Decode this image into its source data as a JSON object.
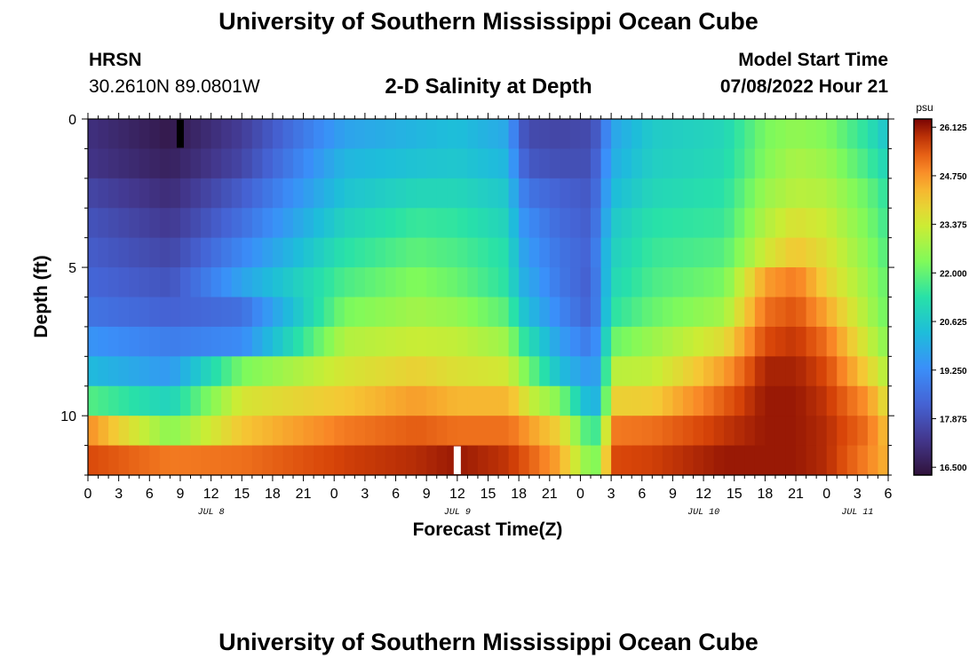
{
  "header": {
    "title_top": "University of Southern Mississippi Ocean Cube",
    "title_bottom": "University of Southern Mississippi Ocean Cube",
    "station": "HRSN",
    "coords": "30.2610N  89.0801W",
    "subtitle": "2-D Salinity at Depth",
    "start_label": "Model Start Time",
    "start_value": "07/08/2022 Hour 21"
  },
  "chart_data": {
    "type": "heatmap",
    "title": "2-D Salinity at Depth",
    "xlabel": "Forecast Time(Z)",
    "ylabel": "Depth (ft)",
    "x_ticks": [
      "0",
      "3",
      "6",
      "9",
      "12",
      "15",
      "18",
      "21",
      "0",
      "3",
      "6",
      "9",
      "12",
      "15",
      "18",
      "21",
      "0",
      "3",
      "6",
      "9",
      "12",
      "15",
      "18",
      "21",
      "0",
      "3",
      "6"
    ],
    "day_labels": [
      {
        "label": "JUL 8",
        "tick_index": 4
      },
      {
        "label": "JUL 9",
        "tick_index": 12
      },
      {
        "label": "JUL 10",
        "tick_index": 20
      },
      {
        "label": "JUL 11",
        "tick_index": 25
      }
    ],
    "y_ticks": [
      "0",
      "5",
      "10"
    ],
    "ylim": [
      0,
      12
    ],
    "xlim_hours": [
      0,
      78
    ],
    "depth_layers": 12,
    "time_steps": 79,
    "colorbar": {
      "unit": "psu",
      "min": 16.5,
      "max": 26.125,
      "ticks": [
        "26.125",
        "24.750",
        "23.375",
        "22.000",
        "20.625",
        "19.250",
        "17.875",
        "16.500"
      ]
    },
    "markers": [
      {
        "hour": 9,
        "layer": 0,
        "color": "#000000"
      },
      {
        "hour": 36,
        "layer": 11,
        "color": "#ffffff"
      }
    ],
    "anchors": [
      [
        0,
        [
          17.3,
          17.4,
          17.8,
          18.1,
          18.3,
          18.5,
          18.8,
          19.5,
          20.3,
          21.8,
          24.7,
          25.4
        ]
      ],
      [
        8,
        [
          16.7,
          16.9,
          17.2,
          17.5,
          17.8,
          18.1,
          18.4,
          19.0,
          19.6,
          20.9,
          22.4,
          24.9
        ]
      ],
      [
        15,
        [
          17.6,
          17.8,
          18.3,
          18.7,
          19.2,
          19.8,
          18.7,
          19.3,
          22.2,
          23.4,
          24.0,
          25.0
        ]
      ],
      [
        25,
        [
          19.8,
          20.2,
          20.5,
          20.9,
          21.3,
          21.7,
          22.2,
          22.9,
          23.4,
          24.0,
          24.9,
          25.5
        ]
      ],
      [
        32,
        [
          20.2,
          20.5,
          21.0,
          21.5,
          21.9,
          22.3,
          22.7,
          23.2,
          23.8,
          24.5,
          25.2,
          25.7
        ]
      ],
      [
        36,
        [
          20.4,
          20.6,
          21.0,
          21.4,
          21.7,
          22.0,
          22.5,
          23.1,
          23.5,
          24.2,
          25.0,
          25.9
        ]
      ],
      [
        41,
        [
          19.9,
          20.2,
          20.6,
          20.9,
          21.2,
          21.3,
          21.8,
          22.6,
          23.3,
          24.2,
          25.0,
          25.6
        ]
      ],
      [
        42,
        [
          18.4,
          18.8,
          19.3,
          19.7,
          20.0,
          20.2,
          20.8,
          21.6,
          22.6,
          23.8,
          24.8,
          25.4
        ]
      ],
      [
        43,
        [
          17.9,
          18.2,
          18.8,
          19.3,
          19.6,
          19.9,
          20.3,
          21.2,
          22.1,
          23.2,
          24.5,
          25.2
        ]
      ],
      [
        46,
        [
          17.8,
          18.0,
          18.4,
          18.6,
          18.8,
          18.9,
          19.2,
          19.7,
          20.4,
          22.3,
          23.8,
          24.4
        ]
      ],
      [
        49,
        [
          17.9,
          18.0,
          18.2,
          18.3,
          18.4,
          18.3,
          18.4,
          18.9,
          19.5,
          20.0,
          21.4,
          22.2
        ]
      ],
      [
        50,
        [
          18.5,
          18.8,
          19.0,
          19.3,
          19.6,
          19.5,
          19.5,
          19.8,
          20.0,
          20.4,
          21.8,
          22.5
        ]
      ],
      [
        51,
        [
          19.8,
          20.0,
          20.3,
          20.6,
          20.8,
          21.0,
          21.3,
          22.0,
          23.0,
          23.8,
          24.9,
          25.4
        ]
      ],
      [
        55,
        [
          20.7,
          20.8,
          21.0,
          21.3,
          21.5,
          21.7,
          22.0,
          22.6,
          23.1,
          23.9,
          25.0,
          25.5
        ]
      ],
      [
        62,
        [
          21.0,
          21.1,
          21.3,
          21.5,
          21.8,
          22.2,
          22.7,
          23.6,
          24.5,
          25.2,
          25.6,
          25.9
        ]
      ],
      [
        66,
        [
          22.2,
          22.3,
          22.6,
          22.9,
          23.3,
          24.5,
          25.0,
          25.4,
          25.8,
          25.9,
          25.9,
          25.9
        ]
      ],
      [
        69,
        [
          22.5,
          22.8,
          23.0,
          23.5,
          24.0,
          24.9,
          25.3,
          25.6,
          25.8,
          25.9,
          25.9,
          25.9
        ]
      ],
      [
        72,
        [
          22.3,
          22.6,
          22.9,
          23.2,
          23.5,
          23.8,
          24.4,
          25.0,
          25.4,
          25.6,
          25.7,
          25.7
        ]
      ],
      [
        76,
        [
          21.3,
          21.6,
          22.0,
          22.2,
          22.4,
          22.6,
          22.8,
          23.2,
          23.8,
          24.6,
          25.0,
          24.8
        ]
      ],
      [
        78,
        [
          20.5,
          20.9,
          21.3,
          21.5,
          21.7,
          21.9,
          22.0,
          22.3,
          22.8,
          23.4,
          24.0,
          24.2
        ]
      ]
    ]
  }
}
